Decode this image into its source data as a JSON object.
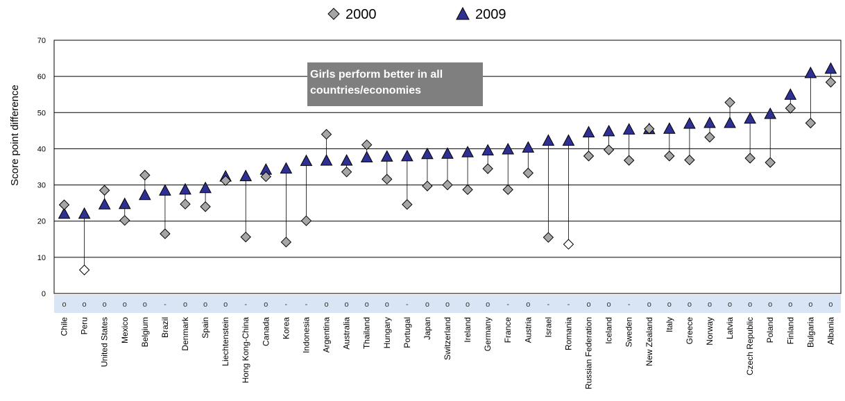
{
  "chart_data": {
    "type": "scatter",
    "ylabel": "Score point difference",
    "ylim": [
      0,
      70
    ],
    "yticks": [
      0,
      10,
      20,
      30,
      40,
      50,
      60,
      70
    ],
    "grid": true,
    "legend_placement": "top-center",
    "annotation": [
      "Girls perform better in all",
      "countries/economies"
    ],
    "colors": {
      "series_2000_fill": "#a6a6a6",
      "series_2000_open_fill": "#ffffff",
      "series_2009_fill": "#2e3192",
      "annotation_bg": "#7f7f7f",
      "sig_band": "#d9e4f5"
    },
    "categories": [
      "Chile",
      "Peru",
      "United States",
      "Mexico",
      "Belgium",
      "Brazil",
      "Denmark",
      "Spain",
      "Liechtenstein",
      "Hong Kong-China",
      "Canada",
      "Korea",
      "Indonesia",
      "Argentina",
      "Australia",
      "Thailand",
      "Hungary",
      "Portugal",
      "Japan",
      "Switzerland",
      "Ireland",
      "Germany",
      "France",
      "Austria",
      "Israel",
      "Romania",
      "Russian Federation",
      "Iceland",
      "Sweden",
      "New Zealand",
      "Italy",
      "Greece",
      "Norway",
      "Latvia",
      "Czech Republic",
      "Poland",
      "Finland",
      "Bulgaria",
      "Albania"
    ],
    "significance": [
      "o",
      "o",
      "o",
      "o",
      "o",
      "-",
      "o",
      "o",
      "o",
      "-",
      "o",
      "-",
      "-",
      "o",
      "o",
      "o",
      "o",
      "-",
      "o",
      "o",
      "o",
      "o",
      "-",
      "o",
      "-",
      "-",
      "o",
      "o",
      "-",
      "o",
      "o",
      "o",
      "o",
      "o",
      "o",
      "o",
      "o",
      "o",
      "o"
    ],
    "series": [
      {
        "name": "2000",
        "marker": "diamond",
        "values": [
          24.5,
          6.5,
          28.5,
          20.2,
          32.7,
          16.5,
          24.7,
          24.0,
          31.2,
          15.6,
          32.3,
          14.2,
          20.1,
          44.0,
          33.6,
          41.1,
          31.6,
          24.6,
          29.7,
          30.0,
          28.7,
          34.5,
          28.7,
          33.3,
          15.5,
          13.6,
          38.0,
          39.7,
          36.8,
          45.5,
          38.0,
          36.9,
          43.2,
          52.8,
          37.4,
          36.2,
          51.2,
          47.1,
          58.4
        ],
        "open_markers": [
          "Peru",
          "Romania"
        ]
      },
      {
        "name": "2009",
        "marker": "triangle",
        "values": [
          21.9,
          21.9,
          24.5,
          24.6,
          27.1,
          28.3,
          28.6,
          29.0,
          32.2,
          32.3,
          34.1,
          34.4,
          36.5,
          36.6,
          36.6,
          37.5,
          37.7,
          37.8,
          38.4,
          38.5,
          38.9,
          39.4,
          39.7,
          40.2,
          42.1,
          42.1,
          44.4,
          44.7,
          45.2,
          45.3,
          45.4,
          46.8,
          47.0,
          47.0,
          48.2,
          49.5,
          54.8,
          60.8,
          62.0
        ]
      }
    ]
  }
}
